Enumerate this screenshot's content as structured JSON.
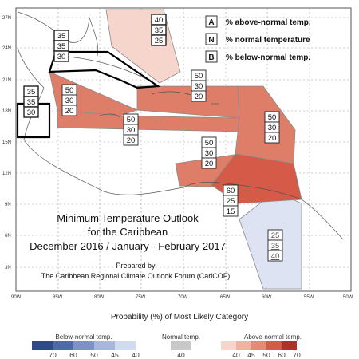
{
  "map": {
    "title_line1": "Minimum Temperature Outlook",
    "title_line2": "for the Caribbean",
    "title_line3": "December 2016 / January - February 2017",
    "prepared_line1": "Prepared by",
    "prepared_line2": "The Caribbean Regional Climate Outlook Forum (CariCOF)",
    "lat_labels": [
      "27N",
      "24N",
      "21N",
      "18N",
      "15N",
      "12N",
      "9N",
      "6N",
      "3N"
    ],
    "lon_labels": [
      "90W",
      "85W",
      "80W",
      "75W",
      "70W",
      "65W",
      "60W",
      "55W",
      "50W"
    ],
    "legend_key": [
      {
        "letter": "A",
        "text": "% above-normal temp."
      },
      {
        "letter": "N",
        "text": "% normal temperature"
      },
      {
        "letter": "B",
        "text": "% below-normal temp."
      }
    ],
    "regions": [
      {
        "name": "bahamas",
        "values": [
          "40",
          "35",
          "25"
        ],
        "category": "above",
        "probability": 40,
        "color": "#f6d6cc"
      },
      {
        "name": "cuba",
        "values": [
          "35",
          "35",
          "30"
        ],
        "category": "above",
        "probability": 35,
        "color": "#ffffff"
      },
      {
        "name": "belize",
        "values": [
          "35",
          "35",
          "30"
        ],
        "category": "above",
        "probability": 35,
        "color": "#ffffff"
      },
      {
        "name": "jamaica-cayman",
        "values": [
          "50",
          "30",
          "20"
        ],
        "category": "above",
        "probability": 50,
        "color": "#de7e68"
      },
      {
        "name": "hispaniola",
        "values": [
          "50",
          "30",
          "20"
        ],
        "category": "above",
        "probability": 50,
        "color": "#de7e68"
      },
      {
        "name": "central-caribbean",
        "values": [
          "50",
          "30",
          "20"
        ],
        "category": "above",
        "probability": 50,
        "color": "#de7e68"
      },
      {
        "name": "leeward-islands",
        "values": [
          "50",
          "30",
          "20"
        ],
        "category": "above",
        "probability": 50,
        "color": "#de7e68"
      },
      {
        "name": "abc-islands",
        "values": [
          "50",
          "30",
          "20"
        ],
        "category": "above",
        "probability": 50,
        "color": "#de7e68"
      },
      {
        "name": "trinidad-windward",
        "values": [
          "60",
          "25",
          "15"
        ],
        "category": "above",
        "probability": 60,
        "color": "#d55a48"
      },
      {
        "name": "guianas",
        "values": [
          "25",
          "35",
          "40"
        ],
        "category": "below",
        "probability": 40,
        "color": "#dde3f2"
      }
    ],
    "legend": {
      "heading": "Probability (%) of Most Likely Category",
      "below": {
        "label": "Below-normal temp.",
        "ticks": [
          "70",
          "60",
          "50",
          "45",
          "40"
        ],
        "colors": [
          "#2f4a8a",
          "#4f6aa8",
          "#7d93c6",
          "#a8b8dc",
          "#d0dbef"
        ]
      },
      "normal": {
        "label": "Normal temp.",
        "ticks": [
          "40"
        ],
        "colors": [
          "#c8c8c8"
        ]
      },
      "above": {
        "label": "Above-normal temp.",
        "ticks": [
          "40",
          "45",
          "50",
          "60",
          "70"
        ],
        "colors": [
          "#f6d6cc",
          "#f0b3a2",
          "#e68a77",
          "#d55a48",
          "#b2302b"
        ]
      }
    }
  }
}
